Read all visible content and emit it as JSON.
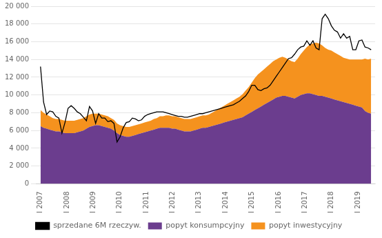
{
  "chart_data": {
    "type": "area",
    "stacked": true,
    "grid": true,
    "legend": "bottom",
    "xlim": [
      -0.15,
      12.65
    ],
    "xticks": [
      {
        "value": 0,
        "label": "I 2007"
      },
      {
        "value": 1,
        "label": "I 2008"
      },
      {
        "value": 2,
        "label": "I 2009"
      },
      {
        "value": 3,
        "label": "I 2010"
      },
      {
        "value": 4,
        "label": "I 2011"
      },
      {
        "value": 5,
        "label": "I 2012"
      },
      {
        "value": 6,
        "label": "I 2013"
      },
      {
        "value": 7,
        "label": "I 2014"
      },
      {
        "value": 8,
        "label": "I 2015"
      },
      {
        "value": 9,
        "label": "I 2016"
      },
      {
        "value": 10,
        "label": "I 2017"
      },
      {
        "value": 11,
        "label": "I 2018"
      },
      {
        "value": 12,
        "label": "I 2019"
      }
    ],
    "ylim": [
      0,
      20000
    ],
    "yticks": [
      0,
      {
        "value": 2000,
        "label": "2 000"
      },
      {
        "value": 4000,
        "label": "4 000"
      },
      {
        "value": 6000,
        "label": "6 000"
      },
      {
        "value": 8000,
        "label": "8 000"
      },
      {
        "value": 10000,
        "label": "10 000"
      },
      {
        "value": 12000,
        "label": "12 000"
      },
      {
        "value": 14000,
        "label": "14 000"
      },
      {
        "value": 16000,
        "label": "16 000"
      },
      {
        "value": 18000,
        "label": "18 000"
      },
      {
        "value": 20000,
        "label": "20 000"
      }
    ],
    "x": [
      0,
      0.1157,
      0.2315,
      0.3472,
      0.463,
      0.5787,
      0.6944,
      0.8102,
      0.9259,
      1.0417,
      1.1574,
      1.2731,
      1.3889,
      1.5046,
      1.6204,
      1.7361,
      1.8519,
      1.9676,
      2.0833,
      2.1991,
      2.3148,
      2.4306,
      2.5463,
      2.662,
      2.7778,
      2.8935,
      3.0093,
      3.125,
      3.2407,
      3.3565,
      3.4722,
      3.588,
      3.7037,
      3.8194,
      3.9352,
      4.0509,
      4.1667,
      4.2824,
      4.3981,
      4.5139,
      4.6296,
      4.7454,
      4.8611,
      4.9769,
      5.0926,
      5.2083,
      5.3241,
      5.4398,
      5.5556,
      5.6713,
      5.787,
      5.9028,
      6.0185,
      6.1343,
      6.25,
      6.3657,
      6.4815,
      6.5972,
      6.713,
      6.8287,
      6.9444,
      7.0602,
      7.1759,
      7.2917,
      7.4074,
      7.5231,
      7.6389,
      7.7546,
      7.8704,
      7.9861,
      8.1019,
      8.2176,
      8.3333,
      8.4491,
      8.5648,
      8.6806,
      8.7963,
      8.912,
      9.0278,
      9.1435,
      9.2593,
      9.375,
      9.4907,
      9.6065,
      9.7222,
      9.838,
      9.9537,
      10.0694,
      10.1852,
      10.3009,
      10.4167,
      10.5324,
      10.6481,
      10.7639,
      10.8796,
      10.9954,
      11.1111,
      11.2269,
      11.3426,
      11.4583,
      11.5741,
      11.6898,
      11.8056,
      11.9213,
      12.037,
      12.1528,
      12.2685,
      12.3843,
      12.5
    ],
    "series": [
      {
        "name": "popyt konsumpcyjny",
        "type": "area",
        "color": "#6B3D8E",
        "values": [
          6500,
          6300,
          6200,
          6100,
          6000,
          5900,
          5900,
          5800,
          5700,
          5700,
          5700,
          5700,
          5800,
          5900,
          6000,
          6200,
          6400,
          6500,
          6600,
          6600,
          6500,
          6400,
          6300,
          6200,
          6000,
          5700,
          5500,
          5400,
          5300,
          5300,
          5400,
          5500,
          5600,
          5700,
          5800,
          5900,
          6000,
          6100,
          6200,
          6300,
          6300,
          6300,
          6300,
          6200,
          6200,
          6100,
          6000,
          5900,
          5900,
          5900,
          6000,
          6100,
          6200,
          6300,
          6300,
          6400,
          6500,
          6600,
          6700,
          6800,
          6900,
          7000,
          7100,
          7200,
          7300,
          7400,
          7500,
          7700,
          7900,
          8100,
          8300,
          8500,
          8700,
          8900,
          9100,
          9300,
          9500,
          9700,
          9800,
          9900,
          9900,
          9800,
          9700,
          9600,
          9800,
          10000,
          10100,
          10200,
          10200,
          10100,
          10000,
          9900,
          9900,
          9800,
          9700,
          9600,
          9500,
          9400,
          9300,
          9200,
          9100,
          9000,
          8900,
          8800,
          8700,
          8600,
          8200,
          8000,
          7900
        ]
      },
      {
        "name": "popyt inwestycyjny",
        "type": "area",
        "color": "#F5921E",
        "values": [
          1800,
          1700,
          1600,
          1500,
          1400,
          1400,
          1400,
          1400,
          1400,
          1400,
          1400,
          1400,
          1400,
          1400,
          1400,
          1400,
          1400,
          1400,
          1300,
          1300,
          1300,
          1300,
          1300,
          1200,
          1200,
          1100,
          1100,
          1100,
          1100,
          1100,
          1100,
          1100,
          1100,
          1100,
          1100,
          1100,
          1100,
          1200,
          1200,
          1300,
          1300,
          1400,
          1400,
          1400,
          1400,
          1400,
          1400,
          1400,
          1400,
          1400,
          1400,
          1400,
          1400,
          1400,
          1400,
          1400,
          1500,
          1600,
          1700,
          1800,
          1900,
          2000,
          2100,
          2200,
          2300,
          2400,
          2600,
          2800,
          3000,
          3300,
          3600,
          3800,
          3900,
          4000,
          4100,
          4200,
          4300,
          4300,
          4400,
          4400,
          4300,
          4200,
          4100,
          4100,
          4300,
          4600,
          4900,
          5200,
          5500,
          5700,
          5900,
          5900,
          5700,
          5500,
          5400,
          5400,
          5300,
          5200,
          5100,
          5000,
          5000,
          5000,
          5100,
          5200,
          5300,
          5400,
          5900,
          6000,
          6200
        ]
      },
      {
        "name": "sprzedane 6M rzeczyw.",
        "type": "line",
        "color": "#000000",
        "values": [
          13200,
          9200,
          7800,
          8200,
          8100,
          7600,
          7400,
          5700,
          6900,
          8500,
          8800,
          8500,
          8100,
          7900,
          7500,
          7100,
          8700,
          8200,
          6800,
          7900,
          7400,
          7400,
          7000,
          7100,
          6800,
          4700,
          5300,
          6300,
          6900,
          7000,
          7400,
          7300,
          7100,
          7200,
          7600,
          7800,
          7900,
          8000,
          8100,
          8100,
          8100,
          8000,
          7900,
          7800,
          7700,
          7600,
          7600,
          7500,
          7500,
          7600,
          7700,
          7800,
          7900,
          7900,
          8000,
          8100,
          8200,
          8300,
          8400,
          8500,
          8600,
          8700,
          8800,
          8900,
          9100,
          9300,
          9600,
          9900,
          10400,
          11100,
          11100,
          10600,
          10500,
          10700,
          10800,
          11100,
          11600,
          12100,
          12600,
          13100,
          13600,
          14100,
          14200,
          14600,
          15100,
          15400,
          15500,
          16100,
          15600,
          16100,
          15300,
          15100,
          18600,
          19100,
          18600,
          17800,
          17300,
          17100,
          16400,
          16900,
          16400,
          16600,
          15100,
          15100,
          16100,
          16200,
          15400,
          15300,
          15100
        ]
      }
    ]
  }
}
